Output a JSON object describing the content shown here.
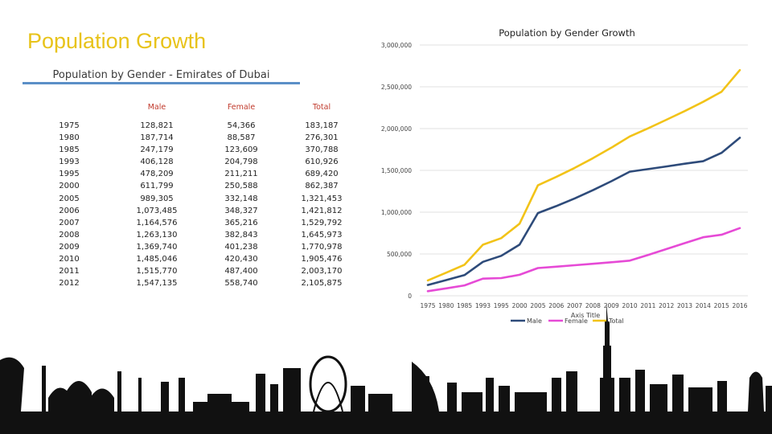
{
  "slide": {
    "title": "Population Growth",
    "subtitle": "Population by Gender - Emirates of Dubai"
  },
  "table": {
    "headers": {
      "year": "",
      "male": "Male",
      "female": "Female",
      "total": "Total"
    },
    "years": [
      "1975",
      "1980",
      "1985",
      "1993",
      "1995",
      "2000",
      "2005",
      "2006",
      "2007",
      "2008",
      "2009",
      "2010",
      "2011",
      "2012"
    ],
    "male": [
      "128,821",
      "187,714",
      "247,179",
      "406,128",
      "478,209",
      "611,799",
      "989,305",
      "1,073,485",
      "1,164,576",
      "1,263,130",
      "1,369,740",
      "1,485,046",
      "1,515,770",
      "1,547,135"
    ],
    "female": [
      "54,366",
      "88,587",
      "123,609",
      "204,798",
      "211,211",
      "250,588",
      "332,148",
      "348,327",
      "365,216",
      "382,843",
      "401,238",
      "420,430",
      "487,400",
      "558,740"
    ],
    "total": [
      "183,187",
      "276,301",
      "370,788",
      "610,926",
      "689,420",
      "862,387",
      "1,321,453",
      "1,421,812",
      "1,529,792",
      "1,645,973",
      "1,770,978",
      "1,905,476",
      "2,003,170",
      "2,105,875"
    ]
  },
  "chart_data": {
    "type": "line",
    "title": "Population by Gender Growth",
    "xlabel": "Axis Title",
    "ylabel": "",
    "ylim": [
      0,
      3000000
    ],
    "yticks": [
      0,
      500000,
      1000000,
      1500000,
      2000000,
      2500000,
      3000000
    ],
    "ytick_labels": [
      "0",
      "500,000",
      "1,000,000",
      "1,500,000",
      "2,000,000",
      "2,500,000",
      "3,000,000"
    ],
    "categories": [
      "1975",
      "1980",
      "1985",
      "1993",
      "1995",
      "2000",
      "2005",
      "2006",
      "2007",
      "2008",
      "2009",
      "2010",
      "2011",
      "2012",
      "2013",
      "2014",
      "2015",
      "2016"
    ],
    "series": [
      {
        "name": "Male",
        "color": "#2e4b7a",
        "values": [
          128821,
          187714,
          247179,
          406128,
          478209,
          611799,
          989305,
          1073485,
          1164576,
          1263130,
          1369740,
          1485046,
          1515770,
          1547135,
          1580000,
          1610000,
          1710000,
          1890000
        ]
      },
      {
        "name": "Female",
        "color": "#e64ad6",
        "values": [
          54366,
          88587,
          123609,
          204798,
          211211,
          250588,
          332148,
          348327,
          365216,
          382843,
          401238,
          420430,
          487400,
          558740,
          630000,
          700000,
          730000,
          810000
        ]
      },
      {
        "name": "Total",
        "color": "#f2c318",
        "values": [
          183187,
          276301,
          370788,
          610926,
          689420,
          862387,
          1321453,
          1421812,
          1529792,
          1645973,
          1770978,
          1905476,
          2003170,
          2105875,
          2210000,
          2320000,
          2440000,
          2700000
        ]
      }
    ],
    "legend_position": "bottom"
  },
  "colors": {
    "title": "#e8c31a",
    "rule": "#5b8fc7",
    "header": "#c0392b",
    "skyline": "#111111"
  }
}
